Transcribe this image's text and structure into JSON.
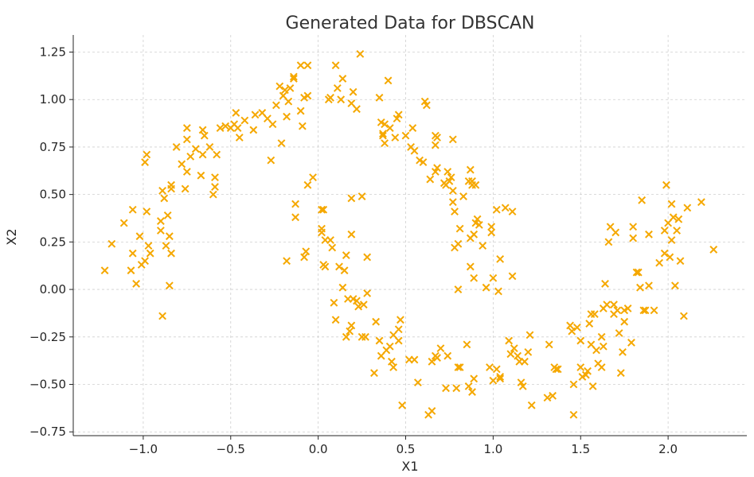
{
  "chart_data": {
    "type": "scatter",
    "title": "Generated Data for DBSCAN",
    "xlabel": "X1",
    "ylabel": "X2",
    "xlim": [
      -1.4,
      2.45
    ],
    "ylim": [
      -0.77,
      1.34
    ],
    "xticks": [
      -1.0,
      -0.5,
      0.0,
      0.5,
      1.0,
      1.5,
      2.0
    ],
    "xtick_labels": [
      "−1.0",
      "−0.5",
      "0.0",
      "0.5",
      "1.0",
      "1.5",
      "2.0"
    ],
    "yticks": [
      -0.75,
      -0.5,
      -0.25,
      0.0,
      0.25,
      0.5,
      0.75,
      1.0,
      1.25
    ],
    "ytick_labels": [
      "−0.75",
      "−0.50",
      "−0.25",
      "0.00",
      "0.25",
      "0.50",
      "0.75",
      "1.00",
      "1.25"
    ],
    "grid": true,
    "marker": "x",
    "marker_color": "#f5a800",
    "points": [
      [
        -1.22,
        0.1
      ],
      [
        -1.18,
        0.24
      ],
      [
        -1.11,
        0.35
      ],
      [
        -1.07,
        0.1
      ],
      [
        -1.06,
        0.19
      ],
      [
        -1.06,
        0.42
      ],
      [
        -1.04,
        0.03
      ],
      [
        -1.02,
        0.28
      ],
      [
        -1.01,
        0.13
      ],
      [
        -0.99,
        0.67
      ],
      [
        -0.99,
        0.15
      ],
      [
        -0.98,
        0.71
      ],
      [
        -0.98,
        0.41
      ],
      [
        -0.97,
        0.23
      ],
      [
        -0.96,
        0.19
      ],
      [
        -0.9,
        0.36
      ],
      [
        -0.9,
        0.31
      ],
      [
        -0.89,
        0.52
      ],
      [
        -0.89,
        -0.14
      ],
      [
        -0.88,
        0.48
      ],
      [
        -0.87,
        0.23
      ],
      [
        -0.86,
        0.39
      ],
      [
        -0.85,
        0.02
      ],
      [
        -0.85,
        0.28
      ],
      [
        -0.84,
        0.19
      ],
      [
        -0.84,
        0.53
      ],
      [
        -0.84,
        0.55
      ],
      [
        -0.81,
        0.75
      ],
      [
        -0.78,
        0.66
      ],
      [
        -0.76,
        0.53
      ],
      [
        -0.75,
        0.85
      ],
      [
        -0.75,
        0.79
      ],
      [
        -0.75,
        0.62
      ],
      [
        -0.73,
        0.7
      ],
      [
        -0.7,
        0.74
      ],
      [
        -0.67,
        0.6
      ],
      [
        -0.66,
        0.71
      ],
      [
        -0.66,
        0.84
      ],
      [
        -0.65,
        0.81
      ],
      [
        -0.62,
        0.75
      ],
      [
        -0.6,
        0.5
      ],
      [
        -0.59,
        0.54
      ],
      [
        -0.59,
        0.59
      ],
      [
        -0.58,
        0.71
      ],
      [
        -0.56,
        0.85
      ],
      [
        -0.53,
        0.86
      ],
      [
        -0.5,
        0.85
      ],
      [
        -0.48,
        0.87
      ],
      [
        -0.47,
        0.93
      ],
      [
        -0.46,
        0.85
      ],
      [
        -0.45,
        0.8
      ],
      [
        -0.42,
        0.89
      ],
      [
        -0.37,
        0.84
      ],
      [
        -0.36,
        0.92
      ],
      [
        -0.32,
        0.93
      ],
      [
        -0.29,
        0.9
      ],
      [
        -0.27,
        0.68
      ],
      [
        -0.26,
        0.87
      ],
      [
        -0.24,
        0.97
      ],
      [
        -0.22,
        1.07
      ],
      [
        -0.21,
        0.77
      ],
      [
        -0.2,
        1.02
      ],
      [
        -0.19,
        1.05
      ],
      [
        -0.18,
        0.15
      ],
      [
        -0.18,
        0.91
      ],
      [
        -0.17,
        0.99
      ],
      [
        -0.16,
        1.06
      ],
      [
        -0.14,
        1.12
      ],
      [
        -0.14,
        1.11
      ],
      [
        -0.13,
        0.45
      ],
      [
        -0.13,
        0.38
      ],
      [
        -0.1,
        1.18
      ],
      [
        -0.1,
        0.94
      ],
      [
        -0.09,
        0.86
      ],
      [
        -0.08,
        1.01
      ],
      [
        -0.08,
        0.17
      ],
      [
        -0.07,
        0.2
      ],
      [
        -0.06,
        1.18
      ],
      [
        -0.06,
        1.02
      ],
      [
        -0.06,
        0.55
      ],
      [
        -0.03,
        0.59
      ],
      [
        0.03,
        0.42
      ],
      [
        0.02,
        0.42
      ],
      [
        0.02,
        0.32
      ],
      [
        0.02,
        0.3
      ],
      [
        0.03,
        0.13
      ],
      [
        0.04,
        0.26
      ],
      [
        0.04,
        0.12
      ],
      [
        0.06,
        1.0
      ],
      [
        0.07,
        0.26
      ],
      [
        0.07,
        1.01
      ],
      [
        0.08,
        0.22
      ],
      [
        0.09,
        -0.07
      ],
      [
        0.1,
        1.18
      ],
      [
        0.1,
        -0.16
      ],
      [
        0.11,
        1.06
      ],
      [
        0.12,
        0.12
      ],
      [
        0.13,
        1.0
      ],
      [
        0.14,
        0.01
      ],
      [
        0.14,
        1.11
      ],
      [
        0.15,
        0.1
      ],
      [
        0.16,
        0.18
      ],
      [
        0.16,
        -0.25
      ],
      [
        0.17,
        -0.05
      ],
      [
        0.18,
        -0.22
      ],
      [
        0.19,
        -0.19
      ],
      [
        0.19,
        0.98
      ],
      [
        0.19,
        0.48
      ],
      [
        0.19,
        0.29
      ],
      [
        0.2,
        -0.05
      ],
      [
        0.2,
        1.04
      ],
      [
        0.22,
        0.95
      ],
      [
        0.22,
        -0.06
      ],
      [
        0.23,
        -0.09
      ],
      [
        0.24,
        1.24
      ],
      [
        0.25,
        -0.25
      ],
      [
        0.25,
        0.49
      ],
      [
        0.26,
        -0.08
      ],
      [
        0.27,
        -0.25
      ],
      [
        0.28,
        0.17
      ],
      [
        0.28,
        -0.02
      ],
      [
        0.32,
        -0.44
      ],
      [
        0.33,
        -0.17
      ],
      [
        0.35,
        -0.27
      ],
      [
        0.35,
        1.01
      ],
      [
        0.36,
        -0.35
      ],
      [
        0.36,
        0.88
      ],
      [
        0.37,
        0.81
      ],
      [
        0.37,
        0.82
      ],
      [
        0.38,
        0.77
      ],
      [
        0.38,
        0.87
      ],
      [
        0.39,
        -0.32
      ],
      [
        0.4,
        1.1
      ],
      [
        0.41,
        0.85
      ],
      [
        0.41,
        -0.3
      ],
      [
        0.42,
        -0.38
      ],
      [
        0.43,
        -0.24
      ],
      [
        0.43,
        -0.41
      ],
      [
        0.44,
        0.8
      ],
      [
        0.45,
        0.9
      ],
      [
        0.46,
        -0.21
      ],
      [
        0.46,
        0.92
      ],
      [
        0.46,
        -0.27
      ],
      [
        0.47,
        -0.16
      ],
      [
        0.48,
        -0.61
      ],
      [
        0.5,
        0.81
      ],
      [
        0.52,
        -0.37
      ],
      [
        0.53,
        0.75
      ],
      [
        0.54,
        0.85
      ],
      [
        0.55,
        0.73
      ],
      [
        0.55,
        -0.37
      ],
      [
        0.57,
        -0.49
      ],
      [
        0.58,
        0.68
      ],
      [
        0.6,
        0.67
      ],
      [
        0.61,
        0.99
      ],
      [
        0.62,
        0.97
      ],
      [
        0.63,
        -0.66
      ],
      [
        0.64,
        0.58
      ],
      [
        0.65,
        -0.64
      ],
      [
        0.65,
        -0.38
      ],
      [
        0.67,
        -0.35
      ],
      [
        0.67,
        0.81
      ],
      [
        0.67,
        0.76
      ],
      [
        0.67,
        0.62
      ],
      [
        0.68,
        0.8
      ],
      [
        0.68,
        0.64
      ],
      [
        0.68,
        -0.36
      ],
      [
        0.7,
        -0.31
      ],
      [
        0.72,
        0.56
      ],
      [
        0.73,
        -0.52
      ],
      [
        0.73,
        0.55
      ],
      [
        0.74,
        -0.35
      ],
      [
        0.74,
        0.62
      ],
      [
        0.75,
        0.57
      ],
      [
        0.76,
        0.59
      ],
      [
        0.77,
        0.52
      ],
      [
        0.77,
        0.79
      ],
      [
        0.77,
        0.46
      ],
      [
        0.78,
        0.22
      ],
      [
        0.78,
        0.41
      ],
      [
        0.79,
        -0.52
      ],
      [
        0.8,
        0.0
      ],
      [
        0.8,
        0.24
      ],
      [
        0.8,
        -0.41
      ],
      [
        0.81,
        -0.41
      ],
      [
        0.81,
        0.32
      ],
      [
        0.83,
        0.49
      ],
      [
        0.85,
        -0.29
      ],
      [
        0.86,
        0.57
      ],
      [
        0.86,
        -0.51
      ],
      [
        0.87,
        0.63
      ],
      [
        0.87,
        0.27
      ],
      [
        0.87,
        0.12
      ],
      [
        0.88,
        -0.54
      ],
      [
        0.88,
        0.57
      ],
      [
        0.88,
        0.55
      ],
      [
        0.89,
        0.29
      ],
      [
        0.89,
        0.06
      ],
      [
        0.89,
        -0.47
      ],
      [
        0.9,
        0.55
      ],
      [
        0.9,
        0.35
      ],
      [
        0.91,
        0.37
      ],
      [
        0.92,
        0.34
      ],
      [
        0.94,
        0.23
      ],
      [
        0.96,
        0.01
      ],
      [
        0.98,
        -0.41
      ],
      [
        0.99,
        0.33
      ],
      [
        0.99,
        0.3
      ],
      [
        1.0,
        0.06
      ],
      [
        1.0,
        -0.48
      ],
      [
        1.02,
        -0.42
      ],
      [
        1.02,
        0.42
      ],
      [
        1.03,
        -0.01
      ],
      [
        1.04,
        -0.46
      ],
      [
        1.04,
        -0.47
      ],
      [
        1.04,
        0.16
      ],
      [
        1.07,
        0.43
      ],
      [
        1.09,
        -0.27
      ],
      [
        1.1,
        -0.34
      ],
      [
        1.11,
        0.41
      ],
      [
        1.11,
        0.07
      ],
      [
        1.12,
        -0.31
      ],
      [
        1.14,
        -0.35
      ],
      [
        1.15,
        -0.38
      ],
      [
        1.16,
        -0.49
      ],
      [
        1.17,
        -0.51
      ],
      [
        1.18,
        -0.38
      ],
      [
        1.2,
        -0.33
      ],
      [
        1.21,
        -0.24
      ],
      [
        1.22,
        -0.61
      ],
      [
        1.31,
        -0.57
      ],
      [
        1.32,
        -0.29
      ],
      [
        1.34,
        -0.56
      ],
      [
        1.35,
        -0.41
      ],
      [
        1.36,
        -0.42
      ],
      [
        1.37,
        -0.42
      ],
      [
        1.44,
        -0.19
      ],
      [
        1.45,
        -0.22
      ],
      [
        1.46,
        -0.66
      ],
      [
        1.46,
        -0.5
      ],
      [
        1.48,
        -0.2
      ],
      [
        1.5,
        -0.41
      ],
      [
        1.5,
        -0.27
      ],
      [
        1.51,
        -0.46
      ],
      [
        1.53,
        -0.45
      ],
      [
        1.54,
        -0.43
      ],
      [
        1.55,
        -0.18
      ],
      [
        1.56,
        -0.13
      ],
      [
        1.56,
        -0.29
      ],
      [
        1.57,
        -0.51
      ],
      [
        1.58,
        -0.13
      ],
      [
        1.59,
        -0.32
      ],
      [
        1.6,
        -0.39
      ],
      [
        1.62,
        -0.25
      ],
      [
        1.62,
        -0.41
      ],
      [
        1.63,
        -0.3
      ],
      [
        1.63,
        -0.1
      ],
      [
        1.64,
        0.03
      ],
      [
        1.65,
        -0.08
      ],
      [
        1.66,
        0.25
      ],
      [
        1.67,
        0.33
      ],
      [
        1.69,
        -0.08
      ],
      [
        1.69,
        -0.13
      ],
      [
        1.7,
        0.3
      ],
      [
        1.71,
        -0.11
      ],
      [
        1.72,
        -0.23
      ],
      [
        1.73,
        -0.44
      ],
      [
        1.74,
        -0.33
      ],
      [
        1.75,
        -0.11
      ],
      [
        1.75,
        -0.17
      ],
      [
        1.77,
        -0.1
      ],
      [
        1.79,
        -0.28
      ],
      [
        1.8,
        0.33
      ],
      [
        1.8,
        0.27
      ],
      [
        1.82,
        0.09
      ],
      [
        1.83,
        0.09
      ],
      [
        1.84,
        0.01
      ],
      [
        1.85,
        0.47
      ],
      [
        1.86,
        -0.11
      ],
      [
        1.87,
        -0.11
      ],
      [
        1.89,
        0.29
      ],
      [
        1.89,
        0.02
      ],
      [
        1.92,
        -0.11
      ],
      [
        1.95,
        0.14
      ],
      [
        1.98,
        0.19
      ],
      [
        1.98,
        0.31
      ],
      [
        1.99,
        0.55
      ],
      [
        2.0,
        0.35
      ],
      [
        2.01,
        0.17
      ],
      [
        2.02,
        0.45
      ],
      [
        2.02,
        0.26
      ],
      [
        2.03,
        0.38
      ],
      [
        2.04,
        0.02
      ],
      [
        2.05,
        0.31
      ],
      [
        2.06,
        0.37
      ],
      [
        2.07,
        0.15
      ],
      [
        2.09,
        -0.14
      ],
      [
        2.11,
        0.43
      ],
      [
        2.19,
        0.46
      ],
      [
        2.26,
        0.21
      ]
    ]
  }
}
